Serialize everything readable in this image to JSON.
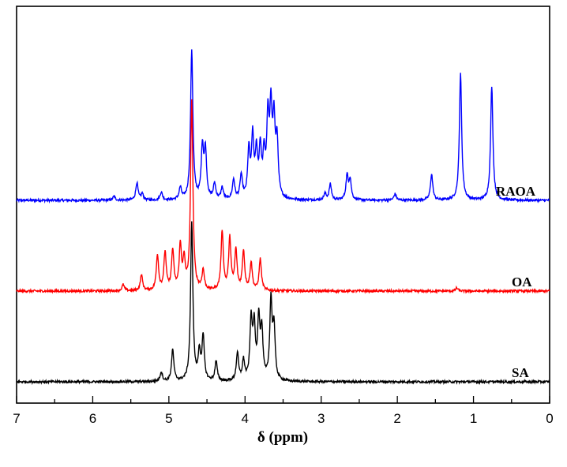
{
  "chart_data": {
    "type": "line",
    "title": "",
    "xlabel": "δ (ppm)",
    "ylabel": "",
    "xlim": [
      7,
      0
    ],
    "x_reversed": true,
    "x_ticks": [
      "7",
      "6",
      "5",
      "4",
      "3",
      "2",
      "1",
      "0"
    ],
    "grid": false,
    "legend": "none",
    "series": [
      {
        "name": "RAOA",
        "color": "#0000ff",
        "peaks": [
          [
            5.72,
            0.05
          ],
          [
            5.42,
            0.22
          ],
          [
            5.35,
            0.08
          ],
          [
            5.1,
            0.1
          ],
          [
            4.85,
            0.15
          ],
          [
            4.7,
            1.9
          ],
          [
            4.56,
            0.65
          ],
          [
            4.52,
            0.6
          ],
          [
            4.4,
            0.2
          ],
          [
            4.3,
            0.15
          ],
          [
            4.15,
            0.25
          ],
          [
            4.05,
            0.3
          ],
          [
            3.95,
            0.6
          ],
          [
            3.9,
            0.75
          ],
          [
            3.85,
            0.55
          ],
          [
            3.8,
            0.6
          ],
          [
            3.75,
            0.5
          ],
          [
            3.7,
            0.95
          ],
          [
            3.66,
            1.05
          ],
          [
            3.62,
            0.9
          ],
          [
            3.58,
            0.7
          ],
          [
            2.95,
            0.08
          ],
          [
            2.88,
            0.2
          ],
          [
            2.66,
            0.3
          ],
          [
            2.62,
            0.25
          ],
          [
            2.03,
            0.08
          ],
          [
            1.55,
            0.33
          ],
          [
            1.17,
            1.6
          ],
          [
            0.76,
            1.45
          ]
        ]
      },
      {
        "name": "OA",
        "color": "#ff0000",
        "peaks": [
          [
            5.6,
            0.08
          ],
          [
            5.36,
            0.2
          ],
          [
            5.15,
            0.45
          ],
          [
            5.05,
            0.48
          ],
          [
            4.95,
            0.5
          ],
          [
            4.85,
            0.55
          ],
          [
            4.8,
            0.35
          ],
          [
            4.7,
            2.4
          ],
          [
            4.55,
            0.25
          ],
          [
            4.3,
            0.75
          ],
          [
            4.2,
            0.65
          ],
          [
            4.12,
            0.5
          ],
          [
            4.02,
            0.5
          ],
          [
            3.92,
            0.35
          ],
          [
            3.8,
            0.4
          ],
          [
            1.22,
            0.04
          ]
        ]
      },
      {
        "name": "SA",
        "color": "#000000",
        "peaks": [
          [
            5.1,
            0.12
          ],
          [
            4.95,
            0.4
          ],
          [
            4.7,
            2.0
          ],
          [
            4.6,
            0.35
          ],
          [
            4.55,
            0.55
          ],
          [
            4.38,
            0.25
          ],
          [
            4.1,
            0.35
          ],
          [
            4.02,
            0.25
          ],
          [
            3.92,
            0.75
          ],
          [
            3.88,
            0.65
          ],
          [
            3.82,
            0.75
          ],
          [
            3.78,
            0.6
          ],
          [
            3.66,
            1.0
          ],
          [
            3.62,
            0.65
          ]
        ]
      }
    ]
  }
}
